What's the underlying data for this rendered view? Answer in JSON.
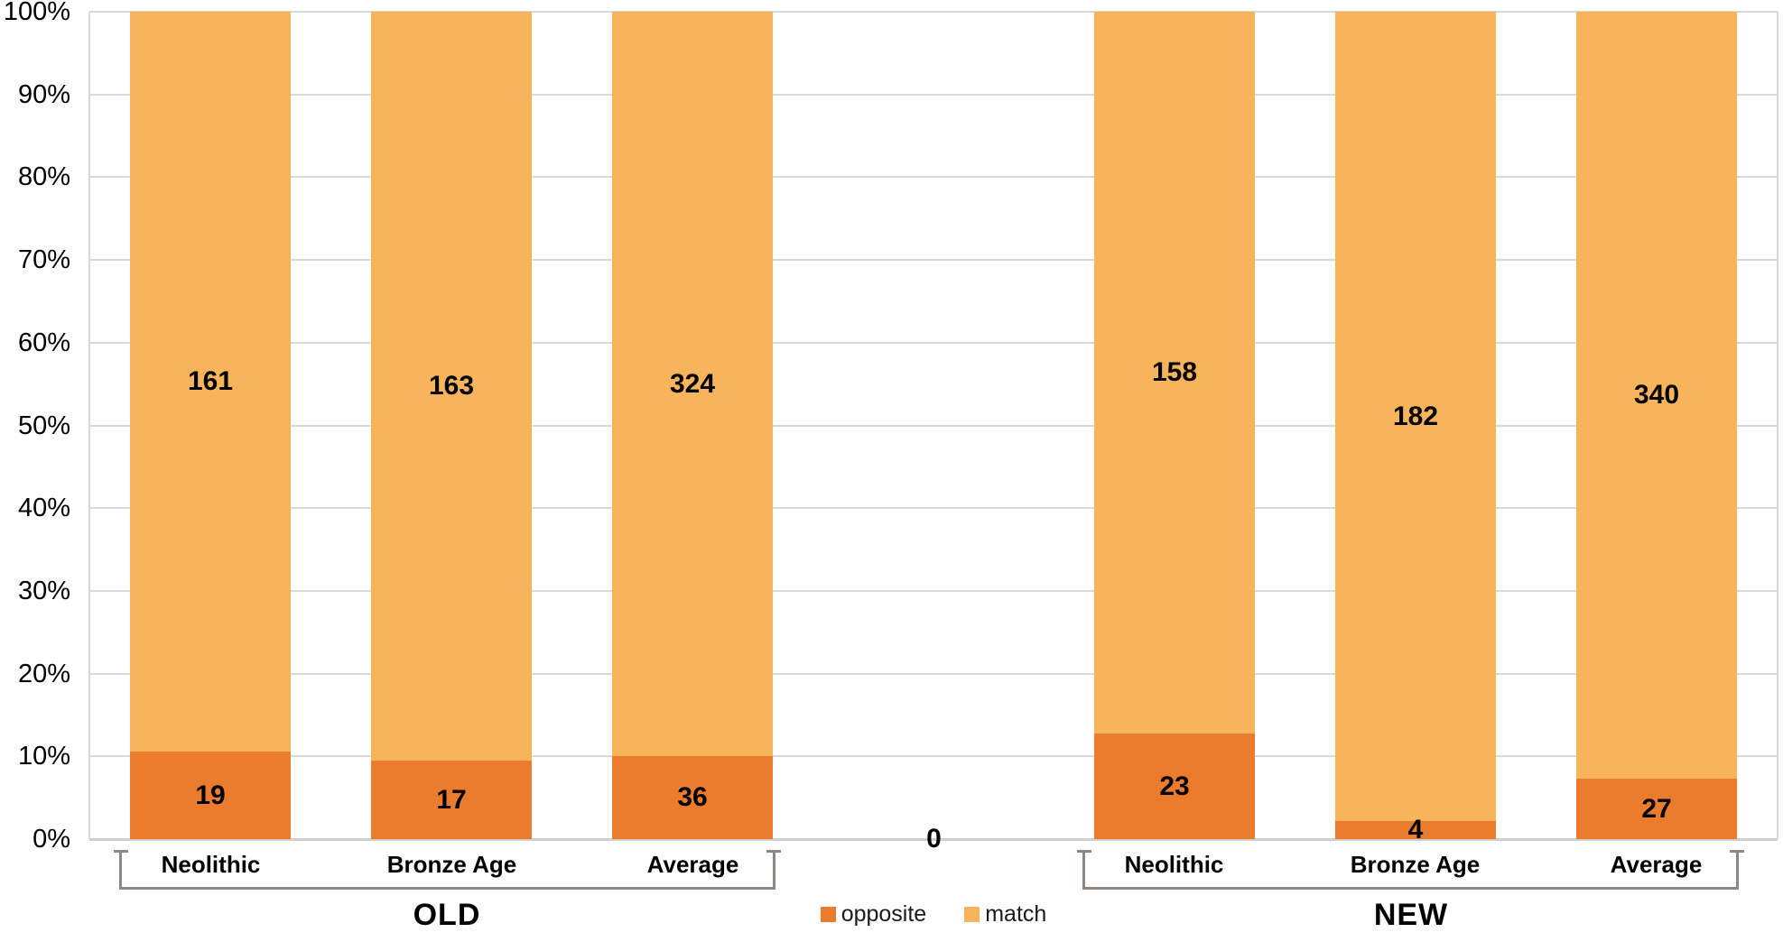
{
  "chart_data": {
    "type": "bar",
    "subtype": "100-percent-stacked-column",
    "title": "",
    "xlabel": "",
    "ylabel": "",
    "grid": true,
    "y_axis": {
      "min": 0,
      "max": 100,
      "tick_step": 10,
      "tick_labels": [
        "0%",
        "10%",
        "20%",
        "30%",
        "40%",
        "50%",
        "60%",
        "70%",
        "80%",
        "90%",
        "100%"
      ]
    },
    "series_names": [
      "opposite",
      "match"
    ],
    "colors": {
      "opposite": "#EC7C2D",
      "match": "#F8B45A",
      "gridline": "#D9D9D9",
      "axis_line": "#D9D9D9",
      "baseline": "#D0CECE",
      "bracket": "#8F8682",
      "label_text": "#000000"
    },
    "groups": [
      {
        "label": "OLD",
        "categories": [
          "Neolithic",
          "Bronze Age",
          "Average"
        ],
        "series": [
          {
            "name": "opposite",
            "values": [
              19,
              17,
              36
            ]
          },
          {
            "name": "match",
            "values": [
              161,
              163,
              324
            ]
          }
        ]
      },
      {
        "label": "NEW",
        "categories": [
          "Neolithic",
          "Bronze Age",
          "Average"
        ],
        "series": [
          {
            "name": "opposite",
            "values": [
              23,
              4,
              27
            ]
          },
          {
            "name": "match",
            "values": [
              158,
              182,
              340
            ]
          }
        ]
      }
    ],
    "separator": {
      "label": "0"
    },
    "legend": {
      "position": "bottom-center",
      "items": [
        {
          "label": "opposite",
          "color_key": "opposite"
        },
        {
          "label": "match",
          "color_key": "match"
        }
      ]
    }
  }
}
